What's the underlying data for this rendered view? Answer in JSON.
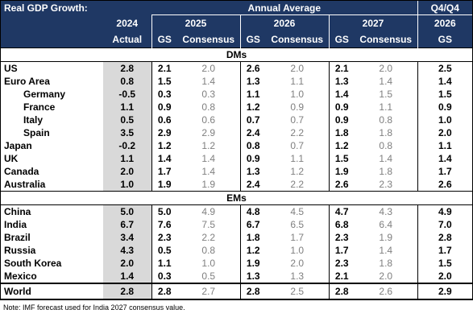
{
  "header": {
    "title": "Real GDP Growth:",
    "annual_average": "Annual Average",
    "q4q4": "Q4/Q4",
    "years": [
      "2024",
      "2025",
      "2026",
      "2027",
      "2026"
    ],
    "actual": "Actual",
    "gs": "GS",
    "consensus": "Consensus"
  },
  "sections": {
    "dms": "DMs",
    "ems": "EMs"
  },
  "dm_rows": [
    {
      "name": "US",
      "a2024": "2.8",
      "gs2025": "2.1",
      "c2025": "2.0",
      "gs2026": "2.6",
      "c2026": "2.0",
      "gs2027": "2.1",
      "c2027": "2.0",
      "q4": "2.5",
      "indent": false
    },
    {
      "name": "Euro Area",
      "a2024": "0.8",
      "gs2025": "1.5",
      "c2025": "1.4",
      "gs2026": "1.3",
      "c2026": "1.1",
      "gs2027": "1.3",
      "c2027": "1.4",
      "q4": "1.4",
      "indent": false
    },
    {
      "name": "Germany",
      "a2024": "-0.5",
      "gs2025": "0.3",
      "c2025": "0.3",
      "gs2026": "1.1",
      "c2026": "1.0",
      "gs2027": "1.4",
      "c2027": "1.5",
      "q4": "1.5",
      "indent": true
    },
    {
      "name": "France",
      "a2024": "1.1",
      "gs2025": "0.9",
      "c2025": "0.8",
      "gs2026": "1.2",
      "c2026": "0.9",
      "gs2027": "0.9",
      "c2027": "1.1",
      "q4": "0.9",
      "indent": true
    },
    {
      "name": "Italy",
      "a2024": "0.5",
      "gs2025": "0.6",
      "c2025": "0.6",
      "gs2026": "0.7",
      "c2026": "0.7",
      "gs2027": "0.9",
      "c2027": "0.8",
      "q4": "1.0",
      "indent": true
    },
    {
      "name": "Spain",
      "a2024": "3.5",
      "gs2025": "2.9",
      "c2025": "2.9",
      "gs2026": "2.4",
      "c2026": "2.2",
      "gs2027": "1.8",
      "c2027": "1.8",
      "q4": "2.0",
      "indent": true
    },
    {
      "name": "Japan",
      "a2024": "-0.2",
      "gs2025": "1.2",
      "c2025": "1.2",
      "gs2026": "0.8",
      "c2026": "0.7",
      "gs2027": "1.2",
      "c2027": "0.8",
      "q4": "1.1",
      "indent": false
    },
    {
      "name": "UK",
      "a2024": "1.1",
      "gs2025": "1.4",
      "c2025": "1.4",
      "gs2026": "0.9",
      "c2026": "1.1",
      "gs2027": "1.5",
      "c2027": "1.4",
      "q4": "1.4",
      "indent": false
    },
    {
      "name": "Canada",
      "a2024": "2.0",
      "gs2025": "1.7",
      "c2025": "1.4",
      "gs2026": "1.3",
      "c2026": "1.2",
      "gs2027": "1.9",
      "c2027": "1.8",
      "q4": "1.7",
      "indent": false
    },
    {
      "name": "Australia",
      "a2024": "1.0",
      "gs2025": "1.9",
      "c2025": "1.9",
      "gs2026": "2.4",
      "c2026": "2.2",
      "gs2027": "2.6",
      "c2027": "2.3",
      "q4": "2.6",
      "indent": false
    }
  ],
  "em_rows": [
    {
      "name": "China",
      "a2024": "5.0",
      "gs2025": "5.0",
      "c2025": "4.9",
      "gs2026": "4.8",
      "c2026": "4.5",
      "gs2027": "4.7",
      "c2027": "4.3",
      "q4": "4.9",
      "indent": false
    },
    {
      "name": "India",
      "a2024": "6.7",
      "gs2025": "7.6",
      "c2025": "7.5",
      "gs2026": "6.7",
      "c2026": "6.5",
      "gs2027": "6.8",
      "c2027": "6.4",
      "q4": "7.0",
      "indent": false
    },
    {
      "name": "Brazil",
      "a2024": "3.4",
      "gs2025": "2.3",
      "c2025": "2.2",
      "gs2026": "1.8",
      "c2026": "1.7",
      "gs2027": "2.3",
      "c2027": "1.9",
      "q4": "2.8",
      "indent": false
    },
    {
      "name": "Russia",
      "a2024": "4.3",
      "gs2025": "0.5",
      "c2025": "0.8",
      "gs2026": "1.2",
      "c2026": "1.0",
      "gs2027": "1.7",
      "c2027": "1.4",
      "q4": "1.7",
      "indent": false
    },
    {
      "name": "South Korea",
      "a2024": "2.0",
      "gs2025": "1.1",
      "c2025": "1.0",
      "gs2026": "1.9",
      "c2026": "2.0",
      "gs2027": "2.3",
      "c2027": "1.8",
      "q4": "1.5",
      "indent": false
    },
    {
      "name": "Mexico",
      "a2024": "1.4",
      "gs2025": "0.3",
      "c2025": "0.5",
      "gs2026": "1.3",
      "c2026": "1.3",
      "gs2027": "2.1",
      "c2027": "2.0",
      "q4": "2.0",
      "indent": false
    }
  ],
  "world": {
    "name": "World",
    "a2024": "2.8",
    "gs2025": "2.8",
    "c2025": "2.7",
    "gs2026": "2.8",
    "c2026": "2.5",
    "gs2027": "2.8",
    "c2027": "2.6",
    "q4": "2.9"
  },
  "note": "Note: IMF forecast used for India 2027 consensus value."
}
